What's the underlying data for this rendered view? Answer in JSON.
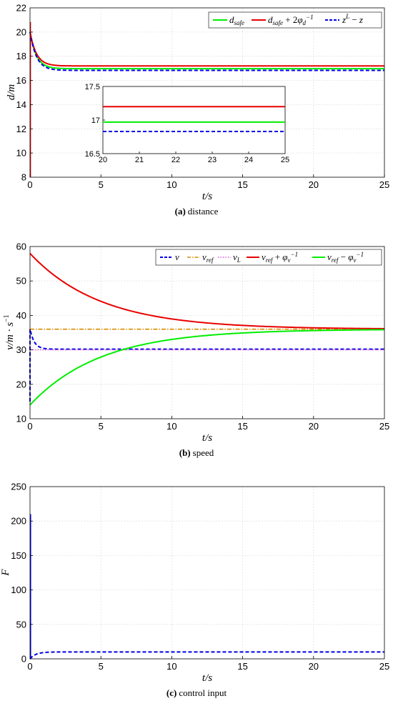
{
  "colors": {
    "green": "#00ee00",
    "red": "#e80000",
    "blue": "#0000e8",
    "orange": "#d98c00",
    "magenta": "#dd55dd"
  },
  "chart_data": [
    {
      "type": "line",
      "caption_tag": "(a)",
      "caption_text": "distance",
      "xlabel": "t/s",
      "ylabel": "d/m",
      "xlim": [
        0,
        25
      ],
      "ylim": [
        8,
        22
      ],
      "xticks": [
        "0",
        "5",
        "10",
        "15",
        "20",
        "25"
      ],
      "yticks": [
        "8",
        "10",
        "12",
        "14",
        "16",
        "18",
        "20",
        "22"
      ],
      "grid": true,
      "legend_placement": "top-right",
      "series": [
        {
          "name": "d_safe",
          "color": "#00ee00",
          "dash": "solid",
          "start": 20.0,
          "end": 16.97,
          "tau": 0.45
        },
        {
          "name": "d_safe + 2φ_d^-1",
          "color": "#e80000",
          "dash": "solid",
          "start": 20.0,
          "end": 17.2,
          "tau": 0.45
        },
        {
          "name": "z^L − z",
          "color": "#0000e8",
          "dash": "dashed",
          "start": 20.0,
          "end": 16.83,
          "tau": 0.45
        }
      ],
      "inset": {
        "xlim": [
          20,
          25
        ],
        "ylim": [
          16.5,
          17.5
        ],
        "xticks": [
          "20",
          "21",
          "22",
          "23",
          "24",
          "25"
        ],
        "yticks": [
          "16.5",
          "17",
          "17.5"
        ],
        "series": [
          {
            "color": "#e80000",
            "dash": "solid",
            "value": 17.2
          },
          {
            "color": "#00ee00",
            "dash": "solid",
            "value": 16.97
          },
          {
            "color": "#0000e8",
            "dash": "dashed",
            "value": 16.83
          }
        ]
      }
    },
    {
      "type": "line",
      "caption_tag": "(b)",
      "caption_text": "speed",
      "xlabel": "t/s",
      "ylabel": "v/m · s^-1",
      "xlim": [
        0,
        25
      ],
      "ylim": [
        10,
        60
      ],
      "xticks": [
        "0",
        "5",
        "10",
        "15",
        "20",
        "25"
      ],
      "yticks": [
        "10",
        "20",
        "30",
        "40",
        "50",
        "60"
      ],
      "grid": true,
      "legend_placement": "top-right",
      "series": [
        {
          "name": "v",
          "color": "#0000e8",
          "dash": "dashed",
          "start": 36.0,
          "end": 30.2,
          "tau": 0.3
        },
        {
          "name": "v_ref",
          "color": "#d98c00",
          "dash": "dashdot",
          "start": 36.0,
          "end": 36.0,
          "tau": 1.0
        },
        {
          "name": "v_L",
          "color": "#dd55dd",
          "dash": "dotted",
          "start": 30.0,
          "end": 30.0,
          "tau": 1.0
        },
        {
          "name": "v_ref + φ_v^-1",
          "color": "#e80000",
          "dash": "solid",
          "start": 58.0,
          "end": 36.0,
          "tau": 5.0
        },
        {
          "name": "v_ref − φ_v^-1",
          "color": "#00ee00",
          "dash": "solid",
          "start": 14.0,
          "end": 36.0,
          "tau": 5.0
        }
      ]
    },
    {
      "type": "line",
      "caption_tag": "(c)",
      "caption_text": "control input",
      "xlabel": "t/s",
      "ylabel": "F",
      "xlim": [
        0,
        25
      ],
      "ylim": [
        0,
        250
      ],
      "xticks": [
        "0",
        "5",
        "10",
        "15",
        "20",
        "25"
      ],
      "yticks": [
        "0",
        "50",
        "100",
        "150",
        "200",
        "250"
      ],
      "grid": true,
      "series": [
        {
          "color": "#0000e8",
          "dash": "dashed",
          "spike_max": 210,
          "start": 0,
          "end": 10,
          "tau": 0.4
        }
      ]
    }
  ]
}
